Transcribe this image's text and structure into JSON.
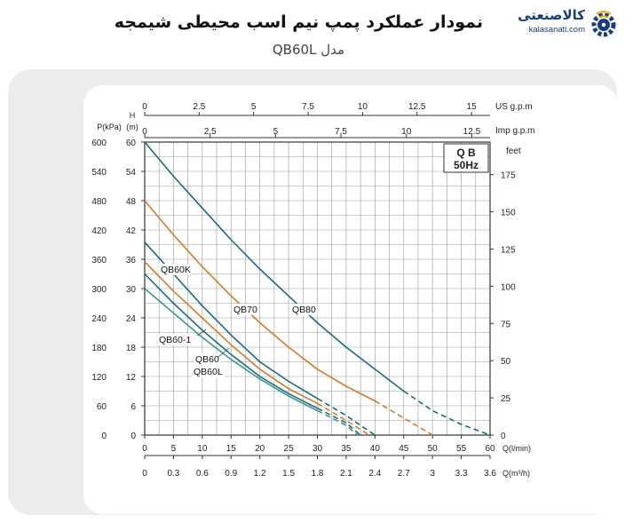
{
  "header": {
    "title": "نمودار عملکرد پمپ نیم اسب محیطی شیمجه",
    "subtitle": "مدل QB60L"
  },
  "logo": {
    "name": "کالاصنعتی",
    "url": "kalasanati.com",
    "icon": "gear-wifi-icon",
    "color": "#1a3d7c",
    "accent": "#f5a623"
  },
  "chart_data": {
    "type": "line",
    "box_label": "Q B",
    "box_sublabel": "50Hz",
    "axes": {
      "pressure": {
        "label": "P(kPa)",
        "ticks": [
          0,
          60,
          120,
          180,
          240,
          300,
          360,
          420,
          480,
          540,
          600
        ]
      },
      "head": {
        "label_1": "H",
        "label_2": "(m)",
        "range": [
          0,
          60
        ],
        "ticks": [
          0,
          6,
          12,
          18,
          24,
          30,
          36,
          42,
          48,
          54,
          60
        ]
      },
      "feet": {
        "label": "feet",
        "ticks": [
          0,
          25,
          50,
          75,
          100,
          125,
          150,
          175
        ]
      },
      "flow_lmin": {
        "label": "Q(l/min)",
        "range": [
          0,
          60
        ],
        "ticks": [
          0,
          5,
          10,
          15,
          20,
          25,
          30,
          35,
          40,
          45,
          50,
          55,
          60
        ]
      },
      "flow_m3h": {
        "label": "Q(m³/h)",
        "ticks": [
          "0",
          "0.3",
          "0.6",
          "0.9",
          "1.2",
          "1.5",
          "1.8",
          "2.1",
          "2.4",
          "2.7",
          "3",
          "3.3",
          "3.6"
        ]
      },
      "us_gpm": {
        "label": "US  g.p.m",
        "ticks": [
          "0",
          "2.5",
          "5",
          "7.5",
          "10",
          "12.5",
          "15"
        ]
      },
      "imp_gpm": {
        "label": "Imp  g.p.m",
        "ticks": [
          "0",
          "2.5",
          "5",
          "7.5",
          "10",
          "12.5"
        ]
      }
    },
    "grid": true,
    "series": [
      {
        "name": "QB80",
        "color": "#1a6b80",
        "solid": [
          [
            0,
            60
          ],
          [
            5,
            53
          ],
          [
            10,
            46.5
          ],
          [
            15,
            40
          ],
          [
            20,
            34
          ],
          [
            25,
            28.5
          ],
          [
            30,
            23
          ],
          [
            35,
            18
          ],
          [
            40,
            13.5
          ],
          [
            45,
            9
          ]
        ],
        "dashed": [
          [
            45,
            9
          ],
          [
            50,
            5
          ],
          [
            55,
            2.2
          ],
          [
            60,
            0
          ]
        ]
      },
      {
        "name": "QB70",
        "color": "#d57a2a",
        "solid": [
          [
            0,
            48
          ],
          [
            5,
            41
          ],
          [
            10,
            34.5
          ],
          [
            15,
            28.5
          ],
          [
            20,
            23
          ],
          [
            25,
            18
          ],
          [
            30,
            13.5
          ],
          [
            35,
            10
          ],
          [
            40,
            7
          ]
        ],
        "dashed": [
          [
            40,
            7
          ],
          [
            45,
            3.5
          ],
          [
            50,
            0
          ]
        ]
      },
      {
        "name": "QB60K",
        "color": "#1a6b80",
        "solid": [
          [
            0,
            39.5
          ],
          [
            5,
            33
          ],
          [
            10,
            26.5
          ],
          [
            15,
            20.5
          ],
          [
            20,
            15
          ],
          [
            25,
            11
          ],
          [
            30,
            7.5
          ]
        ],
        "dashed": [
          [
            30,
            7.5
          ],
          [
            35,
            4
          ],
          [
            40,
            0
          ]
        ]
      },
      {
        "name": "QB60-1",
        "color": "#d57a2a",
        "solid": [
          [
            0,
            35.5
          ],
          [
            5,
            29.5
          ],
          [
            10,
            24
          ],
          [
            15,
            18.5
          ],
          [
            20,
            13.5
          ],
          [
            25,
            9.5
          ],
          [
            30,
            6.5
          ]
        ],
        "dashed": [
          [
            30,
            6.5
          ],
          [
            35,
            3
          ],
          [
            39,
            0
          ]
        ]
      },
      {
        "name": "QB60",
        "color": "#1a6b80",
        "solid": [
          [
            0,
            33
          ],
          [
            5,
            27
          ],
          [
            10,
            21.5
          ],
          [
            15,
            16.5
          ],
          [
            20,
            12
          ],
          [
            25,
            8.5
          ],
          [
            30,
            5.5
          ]
        ],
        "dashed": [
          [
            30,
            5.5
          ],
          [
            35,
            2.5
          ],
          [
            37.5,
            0
          ]
        ]
      },
      {
        "name": "QB60L",
        "color": "#3a9a8a",
        "solid": [
          [
            0,
            30
          ],
          [
            5,
            25
          ],
          [
            10,
            20
          ],
          [
            15,
            15.5
          ],
          [
            20,
            11.5
          ],
          [
            25,
            8
          ],
          [
            30,
            5
          ]
        ],
        "dashed": [
          [
            30,
            5
          ],
          [
            35,
            2
          ],
          [
            37,
            0
          ]
        ]
      }
    ]
  }
}
